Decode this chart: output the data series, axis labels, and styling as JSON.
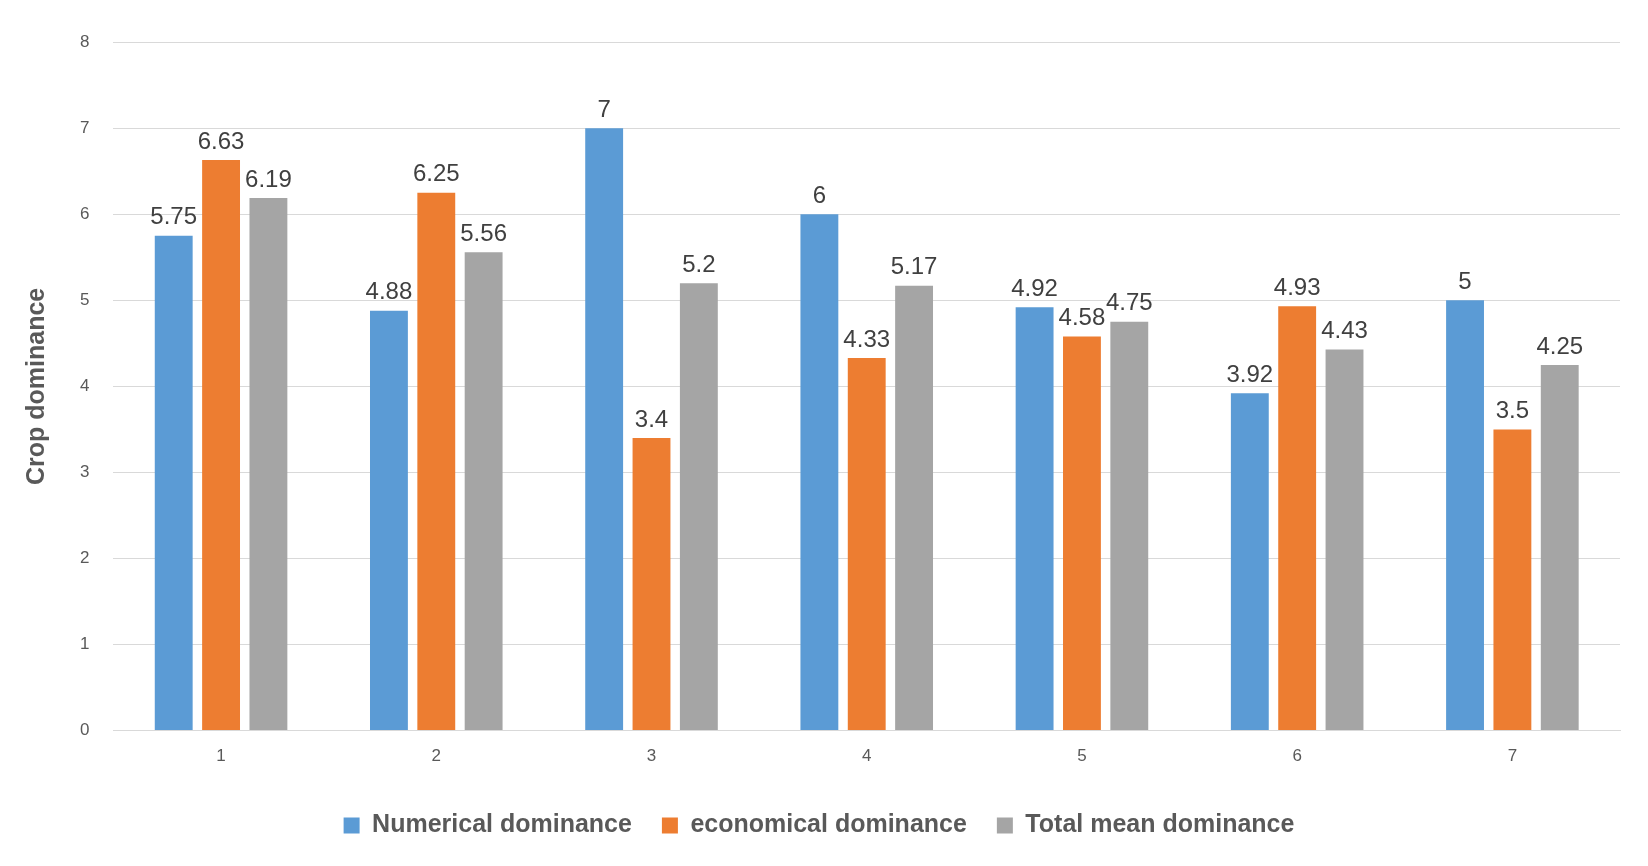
{
  "chart_data": {
    "type": "bar",
    "ylabel": "Crop dominance",
    "categories": [
      "1",
      "2",
      "3",
      "4",
      "5",
      "6",
      "7"
    ],
    "series": [
      {
        "name": "Numerical dominance",
        "color": "#5b9bd5",
        "values": [
          5.75,
          4.88,
          7,
          6,
          4.92,
          3.92,
          5
        ]
      },
      {
        "name": "economical dominance",
        "color": "#ed7d31",
        "values": [
          6.63,
          6.25,
          3.4,
          4.33,
          4.58,
          4.93,
          3.5
        ]
      },
      {
        "name": "Total mean dominance",
        "color": "#a5a5a5",
        "values": [
          6.19,
          5.56,
          5.2,
          5.17,
          4.75,
          4.43,
          4.25
        ]
      }
    ],
    "ylim": [
      0,
      8
    ],
    "yticks": [
      0,
      1,
      2,
      3,
      4,
      5,
      6,
      7,
      8
    ],
    "grid": "y",
    "legend": "bottom",
    "data_labels": true
  }
}
